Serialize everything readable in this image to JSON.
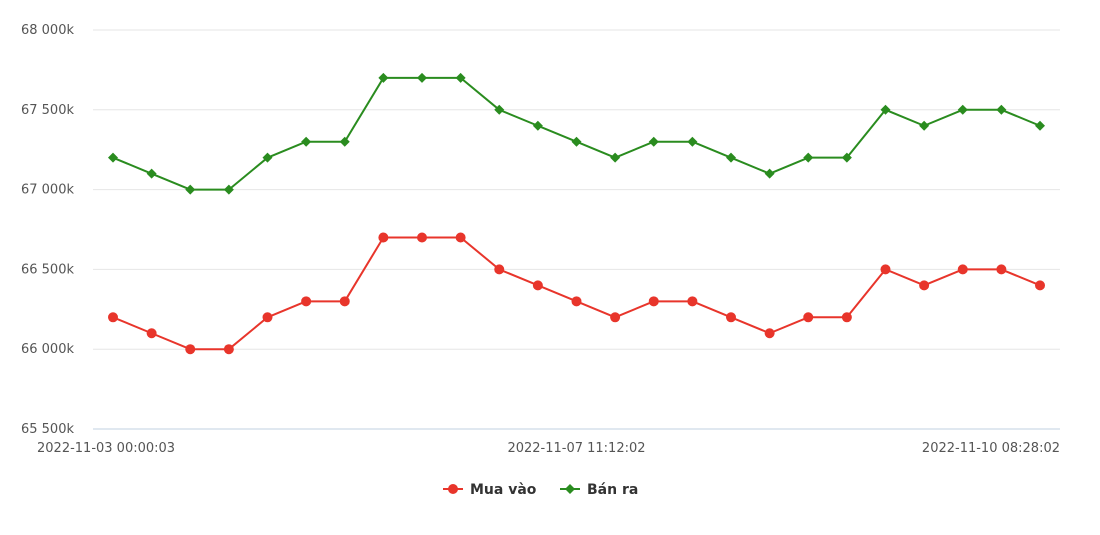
{
  "chart_data": {
    "type": "line",
    "title": "",
    "xlabel": "",
    "ylabel": "",
    "ylim": [
      65500,
      68000
    ],
    "y_ticks": [
      65500,
      66000,
      66500,
      67000,
      67500,
      68000
    ],
    "y_tick_labels": [
      "65 500k",
      "66 000k",
      "66 500k",
      "67 000k",
      "67 500k",
      "68 000k"
    ],
    "x_tick_labels": [
      {
        "index": 0,
        "label": "2022-11-03 00:00:03"
      },
      {
        "index": 12,
        "label": "2022-11-07 11:12:02"
      },
      {
        "index": 24,
        "label": "2022-11-10 08:28:02"
      }
    ],
    "grid": true,
    "legend_position": "bottom-center",
    "series": [
      {
        "name": "Mua vào",
        "color": "#e8352b",
        "marker": "circle",
        "values": [
          66200,
          66100,
          66000,
          66000,
          66200,
          66300,
          66300,
          66700,
          66700,
          66700,
          66500,
          66400,
          66300,
          66200,
          66300,
          66300,
          66200,
          66100,
          66200,
          66200,
          66500,
          66400,
          66500,
          66500,
          66400
        ]
      },
      {
        "name": "Bán ra",
        "color": "#2a8c1f",
        "marker": "diamond",
        "values": [
          67200,
          67100,
          67000,
          67000,
          67200,
          67300,
          67300,
          67700,
          67700,
          67700,
          67500,
          67400,
          67300,
          67200,
          67300,
          67300,
          67200,
          67100,
          67200,
          67200,
          67500,
          67400,
          67500,
          67500,
          67400
        ]
      }
    ]
  }
}
